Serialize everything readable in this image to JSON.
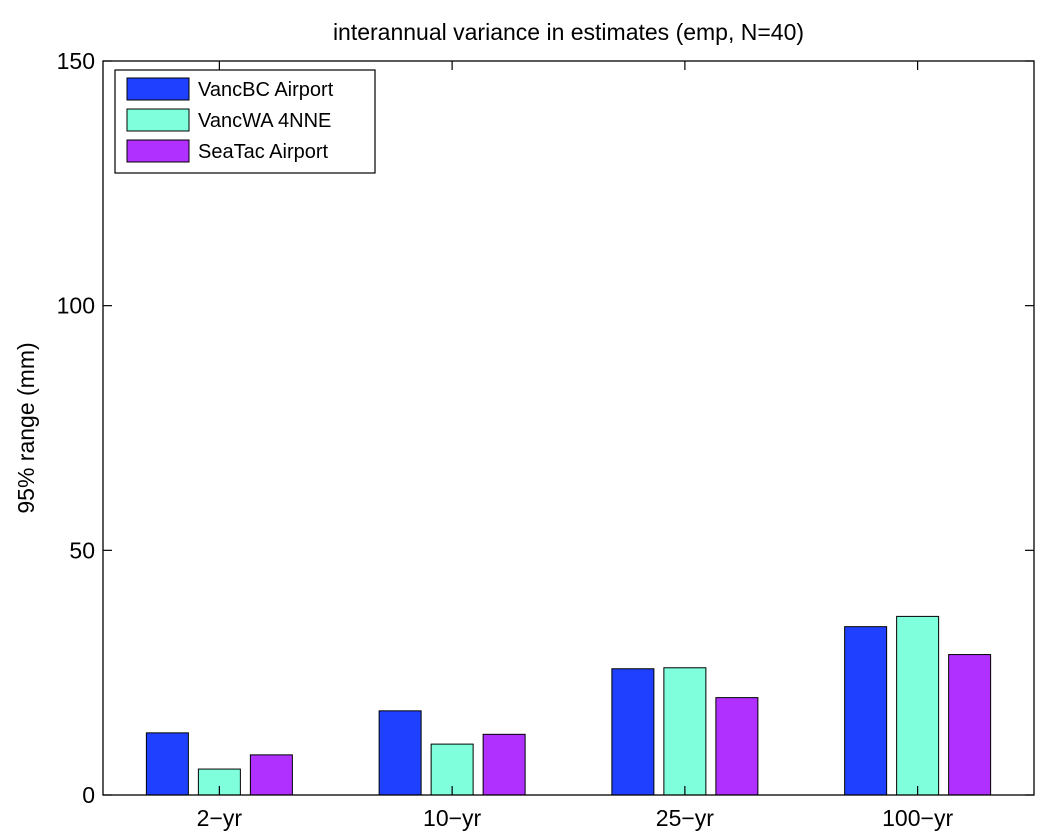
{
  "chart_data": {
    "type": "bar",
    "title": "interannual variance in estimates (emp, N=40)",
    "xlabel": "",
    "ylabel": "95% range (mm)",
    "ylim": [
      0,
      150
    ],
    "yticks": [
      0,
      50,
      100,
      150
    ],
    "categories": [
      "2−yr",
      "10−yr",
      "25−yr",
      "100−yr"
    ],
    "series": [
      {
        "name": "VancBC Airport",
        "color": "#2040ff",
        "values": [
          12.7,
          17.2,
          25.8,
          34.4
        ]
      },
      {
        "name": "VancWA 4NNE",
        "color": "#7fffdc",
        "values": [
          5.3,
          10.4,
          26.0,
          36.5
        ]
      },
      {
        "name": "SeaTac Airport",
        "color": "#b030ff",
        "values": [
          8.2,
          12.4,
          19.9,
          28.7
        ]
      }
    ],
    "legend_position": "top-left",
    "grid": false
  }
}
